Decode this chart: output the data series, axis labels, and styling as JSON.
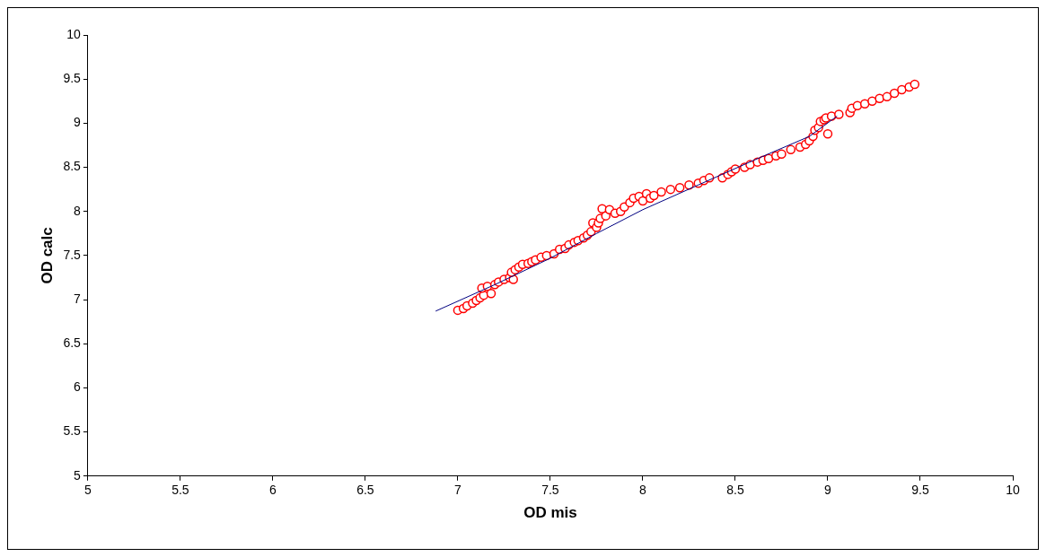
{
  "chart_data": {
    "type": "scatter",
    "xlabel": "OD mis",
    "ylabel": "OD calc",
    "xlim": [
      5,
      10
    ],
    "ylim": [
      5,
      10
    ],
    "xticks": [
      5,
      5.5,
      6,
      6.5,
      7,
      7.5,
      8,
      8.5,
      9,
      9.5,
      10
    ],
    "yticks": [
      5,
      5.5,
      6,
      6.5,
      7,
      7.5,
      8,
      8.5,
      9,
      9.5,
      10
    ],
    "grid": false,
    "legend": false,
    "marker": "circle",
    "series": [
      {
        "type": "line",
        "color": "#000080",
        "marker": "none",
        "x": [
          6.88,
          7.2,
          7.5,
          7.75,
          8.0,
          8.3,
          8.6,
          8.9,
          9.05
        ],
        "values": [
          6.87,
          7.17,
          7.47,
          7.75,
          8.02,
          8.3,
          8.58,
          8.85,
          9.08
        ]
      },
      {
        "color": "#ff0000",
        "x": [
          7.0,
          7.03,
          7.05,
          7.08,
          7.1,
          7.12,
          7.14,
          7.13,
          7.16,
          7.18,
          7.2,
          7.22,
          7.25,
          7.28,
          7.3,
          7.29,
          7.31,
          7.33,
          7.35,
          7.38,
          7.4,
          7.42,
          7.45,
          7.48,
          7.52,
          7.55,
          7.58,
          7.6,
          7.63,
          7.65,
          7.68,
          7.7,
          7.72,
          7.73,
          7.75,
          7.76,
          7.77,
          7.78,
          7.8,
          7.82,
          7.85,
          7.88,
          7.9,
          7.93,
          7.95,
          7.98,
          8.0,
          8.02,
          8.04,
          8.06,
          8.1,
          8.15,
          8.2,
          8.25,
          8.3,
          8.33,
          8.36,
          8.43,
          8.46,
          8.48,
          8.5,
          8.55,
          8.58,
          8.62,
          8.65,
          8.68,
          8.72,
          8.75,
          8.8,
          8.85,
          8.88,
          8.9,
          8.92,
          8.93,
          8.95,
          8.96,
          8.98,
          9.0,
          8.99,
          9.02,
          9.06,
          9.12,
          9.13,
          9.16,
          9.2,
          9.24,
          9.28,
          9.32,
          9.36,
          9.4,
          9.44,
          9.47
        ],
        "values": [
          6.88,
          6.9,
          6.93,
          6.96,
          6.99,
          7.02,
          7.05,
          7.13,
          7.15,
          7.07,
          7.17,
          7.2,
          7.23,
          7.25,
          7.23,
          7.31,
          7.34,
          7.37,
          7.4,
          7.41,
          7.43,
          7.45,
          7.48,
          7.5,
          7.52,
          7.57,
          7.58,
          7.62,
          7.65,
          7.67,
          7.7,
          7.73,
          7.77,
          7.87,
          7.82,
          7.87,
          7.92,
          8.03,
          7.95,
          8.02,
          7.98,
          8.0,
          8.05,
          8.1,
          8.15,
          8.17,
          8.12,
          8.2,
          8.15,
          8.18,
          8.22,
          8.25,
          8.27,
          8.3,
          8.32,
          8.35,
          8.38,
          8.38,
          8.42,
          8.45,
          8.48,
          8.5,
          8.53,
          8.56,
          8.58,
          8.6,
          8.63,
          8.65,
          8.7,
          8.73,
          8.76,
          8.8,
          8.85,
          8.92,
          8.95,
          9.02,
          9.04,
          8.88,
          9.06,
          9.08,
          9.1,
          9.12,
          9.17,
          9.2,
          9.22,
          9.25,
          9.28,
          9.3,
          9.34,
          9.38,
          9.41,
          9.44
        ]
      }
    ]
  }
}
